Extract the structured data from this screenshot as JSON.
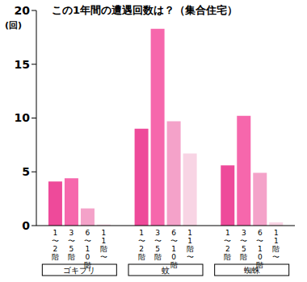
{
  "chart_data": {
    "type": "bar",
    "title": "この1年間の遭遇回数は？（集合住宅）",
    "y_label": "(回)",
    "categories": [
      "ゴキブリ",
      "蚊",
      "蜘蛛"
    ],
    "series": [
      {
        "name": "1〜2階",
        "color": "#ee4a9a",
        "values": [
          4.1,
          9.0,
          5.6
        ]
      },
      {
        "name": "3〜5階",
        "color": "#f667ac",
        "values": [
          4.4,
          18.3,
          10.2
        ]
      },
      {
        "name": "6〜10階",
        "color": "#f4a2c9",
        "values": [
          1.6,
          9.7,
          4.9
        ]
      },
      {
        "name": "11階〜",
        "color": "#f8d4e4",
        "values": [
          0.1,
          6.7,
          0.3
        ]
      }
    ],
    "ylim": [
      0,
      20
    ],
    "yticks": [
      0,
      5,
      10,
      15,
      20
    ],
    "grid": false
  }
}
